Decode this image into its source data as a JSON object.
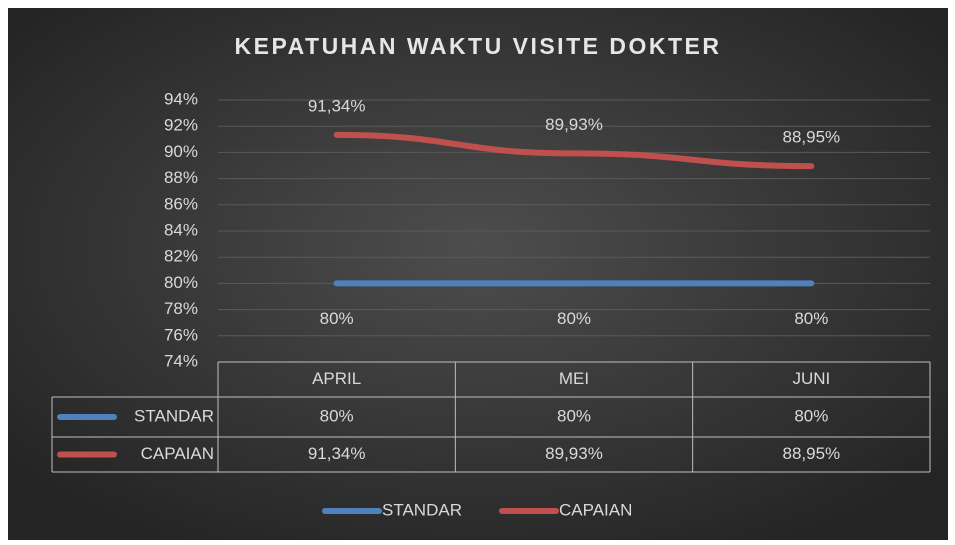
{
  "chart_data": {
    "type": "line",
    "title": "KEPATUHAN WAKTU VISITE DOKTER",
    "categories": [
      "APRIL",
      "MEI",
      "JUNI"
    ],
    "series": [
      {
        "name": "STANDAR",
        "color": "#4f81bd",
        "values": [
          80,
          80,
          80
        ],
        "value_labels": [
          "80%",
          "80%",
          "80%"
        ]
      },
      {
        "name": "CAPAIAN",
        "color": "#c0504d",
        "values": [
          91.34,
          89.93,
          88.95
        ],
        "value_labels": [
          "91,34%",
          "89,93%",
          "88,95%"
        ]
      }
    ],
    "ylim": [
      74,
      94
    ],
    "yticks": [
      {
        "value": 74,
        "label": "74%"
      },
      {
        "value": 76,
        "label": "76%"
      },
      {
        "value": 78,
        "label": "78%"
      },
      {
        "value": 80,
        "label": "80%"
      },
      {
        "value": 82,
        "label": "82%"
      },
      {
        "value": 84,
        "label": "84%"
      },
      {
        "value": 86,
        "label": "86%"
      },
      {
        "value": 88,
        "label": "88%"
      },
      {
        "value": 90,
        "label": "90%"
      },
      {
        "value": 92,
        "label": "92%"
      },
      {
        "value": 94,
        "label": "94%"
      }
    ],
    "grid": true,
    "data_table": true,
    "legend": "bottom"
  }
}
